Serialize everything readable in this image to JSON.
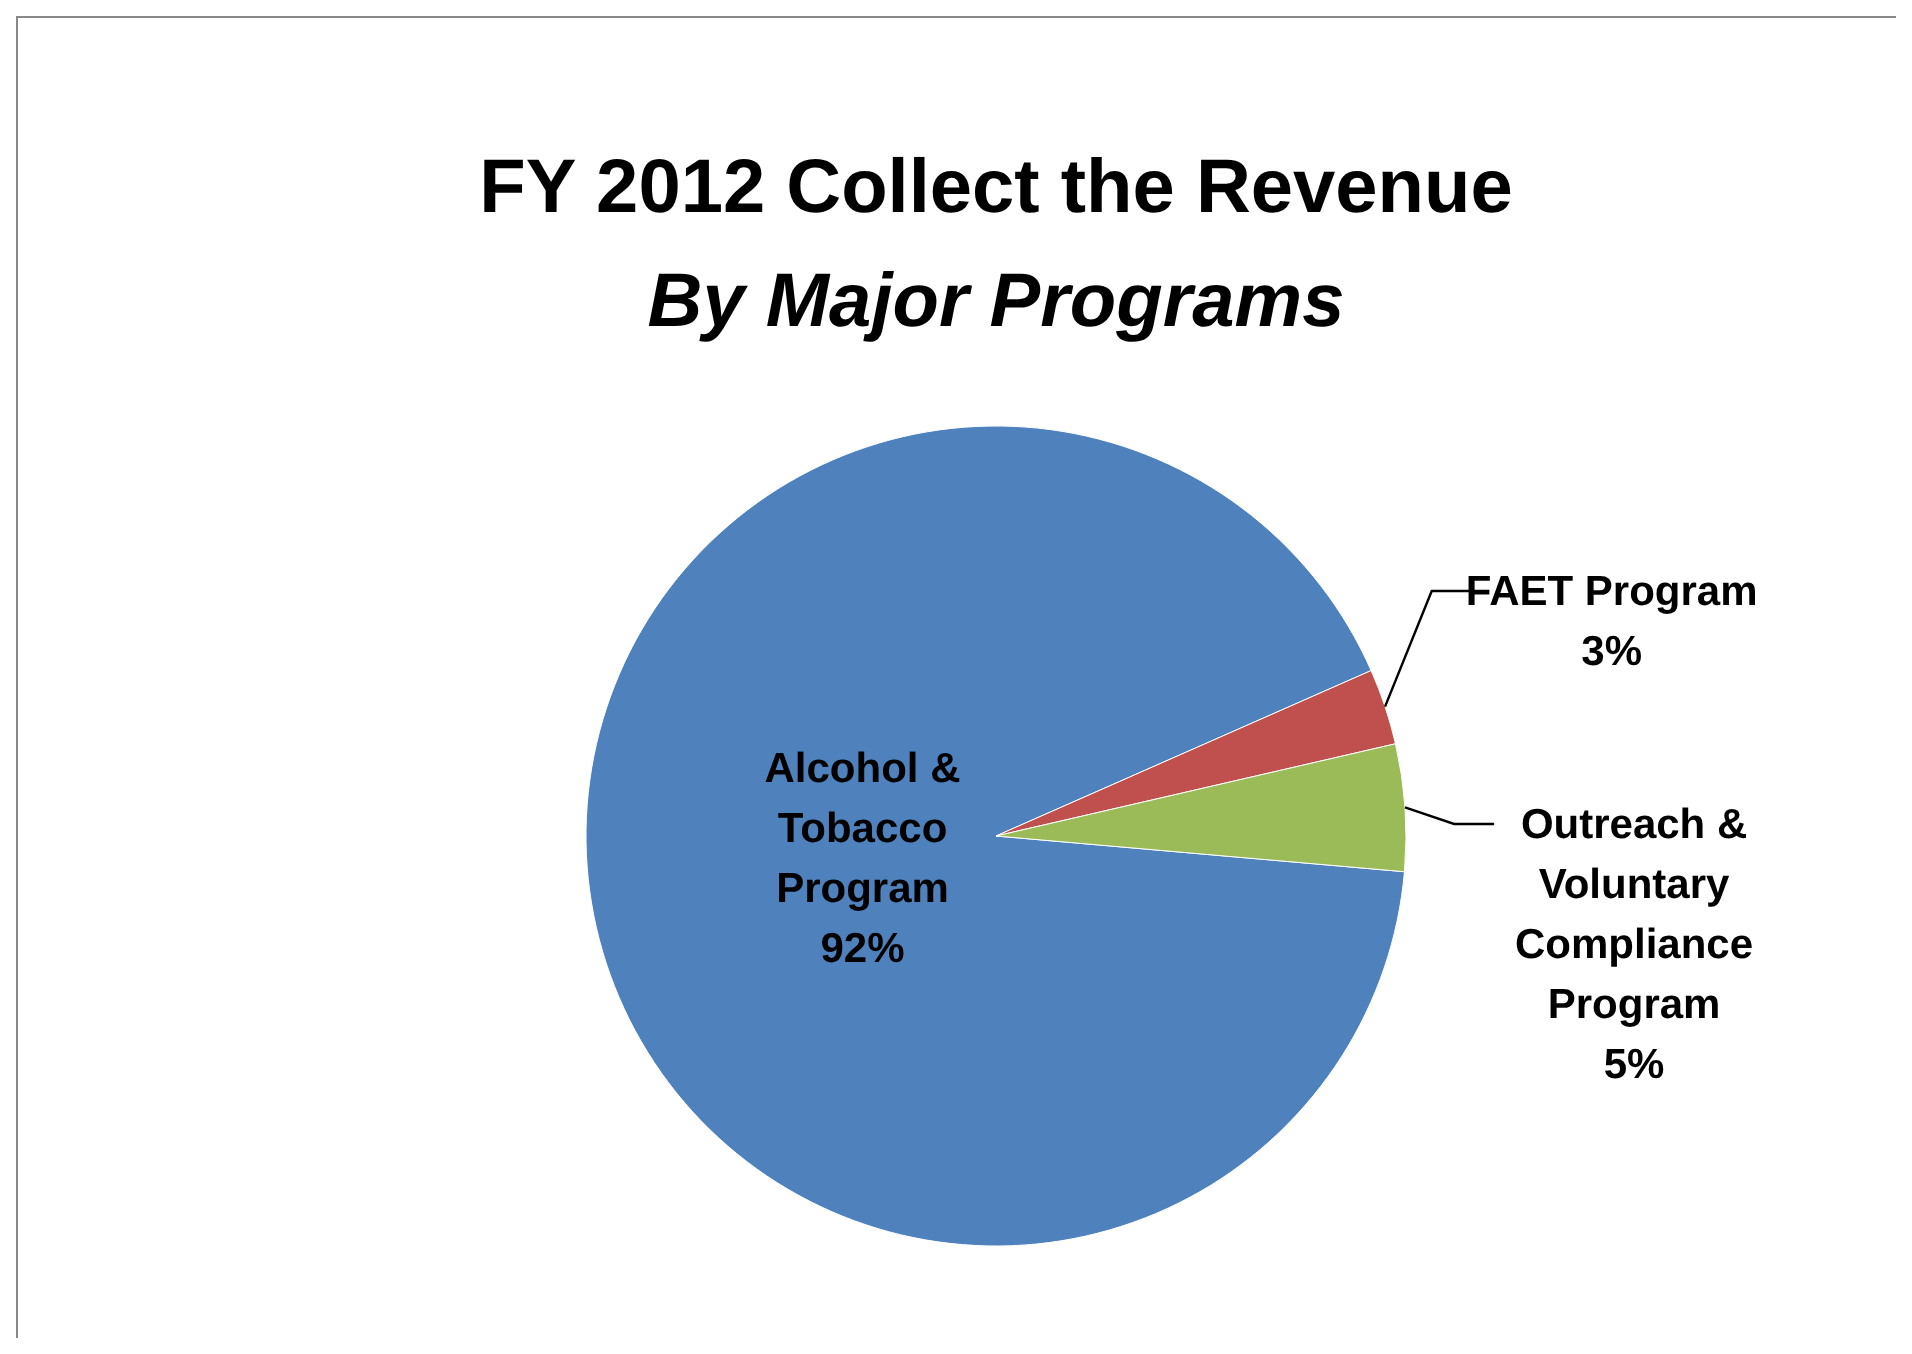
{
  "chart_data": {
    "type": "pie",
    "title": "FY 2012 Collect the Revenue",
    "subtitle": "By Major Programs",
    "categories": [
      "Alcohol & Tobacco Program",
      "FAET Program",
      "Outreach & Voluntary Compliance Program"
    ],
    "values": [
      92,
      3,
      5
    ],
    "colors": [
      "#4f81bd",
      "#c0504d",
      "#9bbb59"
    ],
    "value_labels": [
      "92%",
      "3%",
      "5%"
    ]
  }
}
